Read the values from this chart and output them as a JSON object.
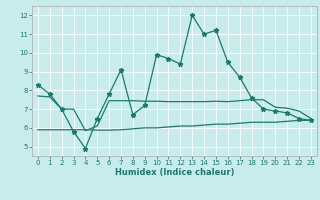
{
  "title": "",
  "xlabel": "Humidex (Indice chaleur)",
  "bg_color": "#c8ecec",
  "line_color": "#1a7a6e",
  "xlim": [
    -0.5,
    23.5
  ],
  "ylim": [
    4.5,
    12.5
  ],
  "yticks": [
    5,
    6,
    7,
    8,
    9,
    10,
    11,
    12
  ],
  "xticks": [
    0,
    1,
    2,
    3,
    4,
    5,
    6,
    7,
    8,
    9,
    10,
    11,
    12,
    13,
    14,
    15,
    16,
    17,
    18,
    19,
    20,
    21,
    22,
    23
  ],
  "main_x": [
    0,
    1,
    2,
    3,
    4,
    5,
    6,
    7,
    8,
    9,
    10,
    11,
    12,
    13,
    14,
    15,
    16,
    17,
    18,
    19,
    20,
    21,
    22,
    23
  ],
  "main_y": [
    8.3,
    7.8,
    7.0,
    5.8,
    4.9,
    6.5,
    7.8,
    9.1,
    6.7,
    7.2,
    9.9,
    9.7,
    9.4,
    12.0,
    11.0,
    11.2,
    9.5,
    8.7,
    7.6,
    7.0,
    6.9,
    6.8,
    6.5,
    6.4
  ],
  "line2_x": [
    0,
    1,
    2,
    3,
    4,
    5,
    6,
    7,
    8,
    9,
    10,
    11,
    12,
    13,
    14,
    15,
    16,
    17,
    18,
    19,
    20,
    21,
    22,
    23
  ],
  "line2_y": [
    7.7,
    7.65,
    7.0,
    7.0,
    5.85,
    6.1,
    7.45,
    7.45,
    7.45,
    7.42,
    7.42,
    7.4,
    7.4,
    7.4,
    7.4,
    7.42,
    7.4,
    7.45,
    7.5,
    7.5,
    7.1,
    7.05,
    6.9,
    6.5
  ],
  "line3_x": [
    0,
    1,
    2,
    3,
    4,
    5,
    6,
    7,
    8,
    9,
    10,
    11,
    12,
    13,
    14,
    15,
    16,
    17,
    18,
    19,
    20,
    21,
    22,
    23
  ],
  "line3_y": [
    5.9,
    5.9,
    5.9,
    5.9,
    5.9,
    5.88,
    5.88,
    5.9,
    5.95,
    6.0,
    6.0,
    6.05,
    6.1,
    6.1,
    6.15,
    6.2,
    6.2,
    6.25,
    6.3,
    6.3,
    6.3,
    6.35,
    6.4,
    6.4
  ],
  "xlabel_fontsize": 6,
  "tick_fontsize": 5,
  "linewidth": 0.9,
  "markersize": 3.5,
  "grid_color": "#ffffff",
  "grid_lw": 0.6
}
